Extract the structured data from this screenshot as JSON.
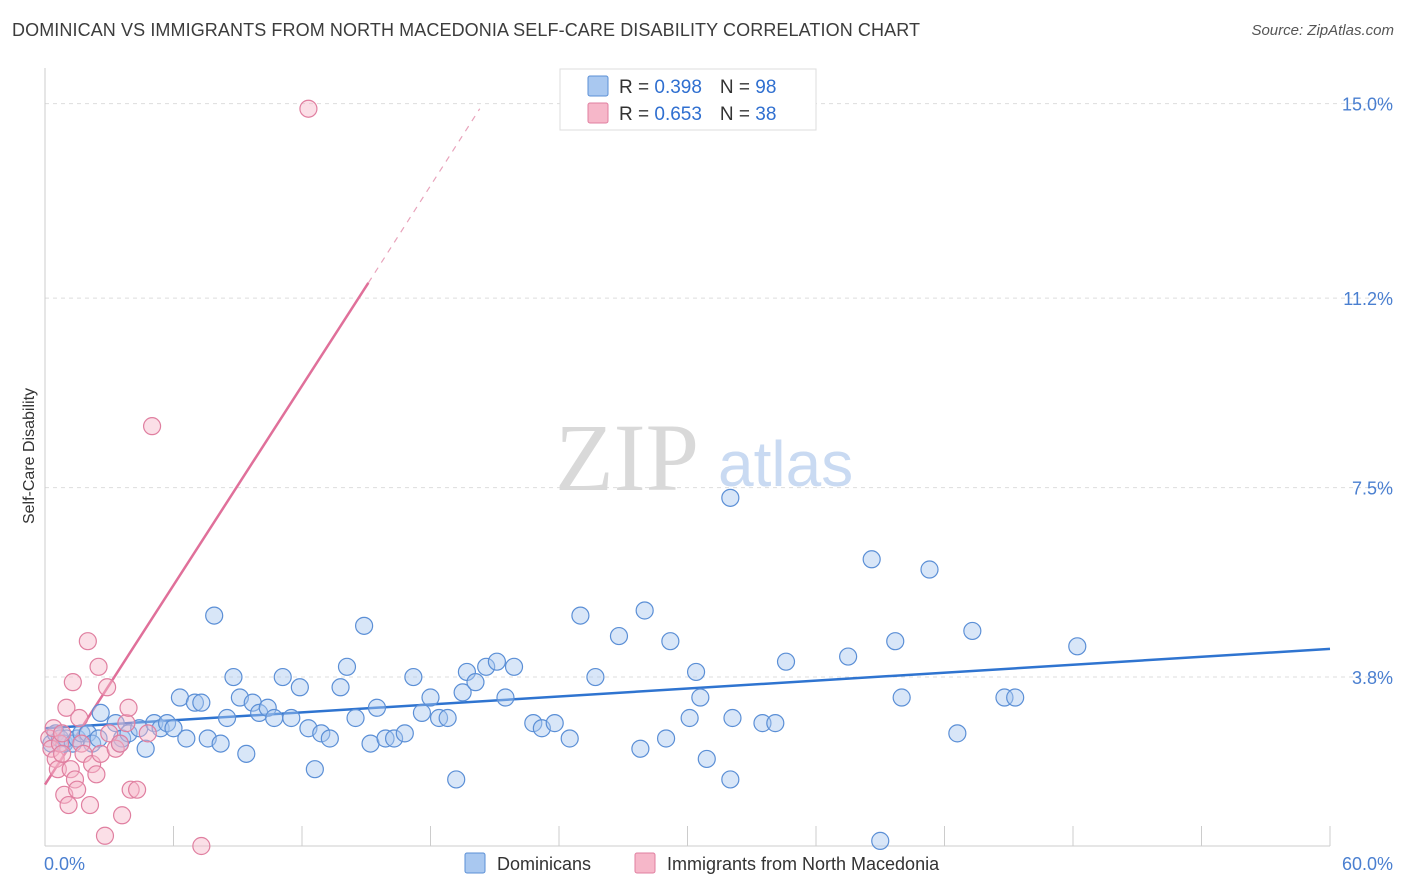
{
  "title": "DOMINICAN VS IMMIGRANTS FROM NORTH MACEDONIA SELF-CARE DISABILITY CORRELATION CHART",
  "source": "Source: ZipAtlas.com",
  "watermark": {
    "zip": "ZIP",
    "atlas": "atlas"
  },
  "colors": {
    "blue_fill": "#a9c8f0",
    "blue_stroke": "#5b8fd6",
    "blue_line": "#2f74d0",
    "pink_fill": "#f6b7c9",
    "pink_stroke": "#e07fa0",
    "pink_line": "#e0709a",
    "grid": "#dddddd",
    "tick_label": "#4a7fd0"
  },
  "legend": {
    "series": [
      {
        "r_label": "R = ",
        "r_value": "0.398",
        "n_label": "N = ",
        "n_value": "98"
      },
      {
        "r_label": "R = ",
        "r_value": "0.653",
        "n_label": "N = ",
        "n_value": "38"
      }
    ]
  },
  "chart_data": {
    "type": "scatter",
    "title": "DOMINICAN VS IMMIGRANTS FROM NORTH MACEDONIA SELF-CARE DISABILITY CORRELATION CHART",
    "xlabel": "",
    "ylabel": "Self-Care Disability",
    "xlim": [
      0,
      60
    ],
    "ylim": [
      0,
      15.5
    ],
    "x_tick_labels": [
      "0.0%",
      "60.0%"
    ],
    "y_ticks": [
      3.8,
      7.5,
      11.2,
      15.0
    ],
    "y_tick_labels": [
      "3.8%",
      "7.5%",
      "11.2%",
      "15.0%"
    ],
    "grid": true,
    "legend_position": "top-center",
    "series": [
      {
        "name": "Dominicans",
        "color": "blue",
        "trendline": {
          "x0": 0,
          "y0": 2.8,
          "x1": 60,
          "y1": 4.35
        },
        "points": [
          [
            0.3,
            2.5
          ],
          [
            0.5,
            2.7
          ],
          [
            0.7,
            2.6
          ],
          [
            0.9,
            2.5
          ],
          [
            1.0,
            2.6
          ],
          [
            1.3,
            2.5
          ],
          [
            1.5,
            2.6
          ],
          [
            1.7,
            2.7
          ],
          [
            2.0,
            2.7
          ],
          [
            2.2,
            2.5
          ],
          [
            2.5,
            2.6
          ],
          [
            2.6,
            3.1
          ],
          [
            3.3,
            2.9
          ],
          [
            3.5,
            2.5
          ],
          [
            3.6,
            2.6
          ],
          [
            3.9,
            2.7
          ],
          [
            4.4,
            2.8
          ],
          [
            4.7,
            2.4
          ],
          [
            5.1,
            2.9
          ],
          [
            5.4,
            2.8
          ],
          [
            5.7,
            2.9
          ],
          [
            6.0,
            2.8
          ],
          [
            6.3,
            3.4
          ],
          [
            6.6,
            2.6
          ],
          [
            7.0,
            3.3
          ],
          [
            7.3,
            3.3
          ],
          [
            7.6,
            2.6
          ],
          [
            7.9,
            5.0
          ],
          [
            8.2,
            2.5
          ],
          [
            8.5,
            3.0
          ],
          [
            8.8,
            3.8
          ],
          [
            9.1,
            3.4
          ],
          [
            9.4,
            2.3
          ],
          [
            9.7,
            3.3
          ],
          [
            10.0,
            3.1
          ],
          [
            10.4,
            3.2
          ],
          [
            10.7,
            3.0
          ],
          [
            11.1,
            3.8
          ],
          [
            11.5,
            3.0
          ],
          [
            11.9,
            3.6
          ],
          [
            12.3,
            2.8
          ],
          [
            12.6,
            2.0
          ],
          [
            12.9,
            2.7
          ],
          [
            13.3,
            2.6
          ],
          [
            13.8,
            3.6
          ],
          [
            14.1,
            4.0
          ],
          [
            14.5,
            3.0
          ],
          [
            14.9,
            4.8
          ],
          [
            15.2,
            2.5
          ],
          [
            15.5,
            3.2
          ],
          [
            15.9,
            2.6
          ],
          [
            16.3,
            2.6
          ],
          [
            16.8,
            2.7
          ],
          [
            17.2,
            3.8
          ],
          [
            17.6,
            3.1
          ],
          [
            18.0,
            3.4
          ],
          [
            18.4,
            3.0
          ],
          [
            18.8,
            3.0
          ],
          [
            19.2,
            1.8
          ],
          [
            19.5,
            3.5
          ],
          [
            19.7,
            3.9
          ],
          [
            20.1,
            3.7
          ],
          [
            20.6,
            4.0
          ],
          [
            21.1,
            4.1
          ],
          [
            21.5,
            3.4
          ],
          [
            21.9,
            4.0
          ],
          [
            22.8,
            2.9
          ],
          [
            23.2,
            2.8
          ],
          [
            23.8,
            2.9
          ],
          [
            24.5,
            2.6
          ],
          [
            25.0,
            5.0
          ],
          [
            25.7,
            3.8
          ],
          [
            26.8,
            4.6
          ],
          [
            27.8,
            2.4
          ],
          [
            28.0,
            5.1
          ],
          [
            29.0,
            2.6
          ],
          [
            29.2,
            4.5
          ],
          [
            30.1,
            3.0
          ],
          [
            30.4,
            3.9
          ],
          [
            30.6,
            3.4
          ],
          [
            30.9,
            2.2
          ],
          [
            32.0,
            7.3
          ],
          [
            32.1,
            3.0
          ],
          [
            32.0,
            1.8
          ],
          [
            33.5,
            2.9
          ],
          [
            34.1,
            2.9
          ],
          [
            34.6,
            4.1
          ],
          [
            37.5,
            4.2
          ],
          [
            38.6,
            6.1
          ],
          [
            39.0,
            0.6
          ],
          [
            39.7,
            4.5
          ],
          [
            40.0,
            3.4
          ],
          [
            41.3,
            5.9
          ],
          [
            42.6,
            2.7
          ],
          [
            43.3,
            4.7
          ],
          [
            44.8,
            3.4
          ],
          [
            45.3,
            3.4
          ],
          [
            48.2,
            4.4
          ]
        ]
      },
      {
        "name": "Immigrants from North Macedonia",
        "color": "pink",
        "trendline": {
          "x0": 0,
          "y0": 1.7,
          "x1": 15.1,
          "y1": 11.5,
          "dashed_to": {
            "x": 20.3,
            "y": 14.9
          }
        },
        "points": [
          [
            0.2,
            2.6
          ],
          [
            0.3,
            2.4
          ],
          [
            0.4,
            2.8
          ],
          [
            0.5,
            2.2
          ],
          [
            0.6,
            2.0
          ],
          [
            0.7,
            2.5
          ],
          [
            0.8,
            2.7
          ],
          [
            0.9,
            1.5
          ],
          [
            1.0,
            3.2
          ],
          [
            1.1,
            1.3
          ],
          [
            1.2,
            2.0
          ],
          [
            1.3,
            3.7
          ],
          [
            1.4,
            1.8
          ],
          [
            1.5,
            1.6
          ],
          [
            1.6,
            3.0
          ],
          [
            1.7,
            2.5
          ],
          [
            1.8,
            2.3
          ],
          [
            2.0,
            4.5
          ],
          [
            2.1,
            1.3
          ],
          [
            2.2,
            2.1
          ],
          [
            2.4,
            1.9
          ],
          [
            2.5,
            4.0
          ],
          [
            2.6,
            2.3
          ],
          [
            2.8,
            0.7
          ],
          [
            2.9,
            3.6
          ],
          [
            3.0,
            2.7
          ],
          [
            3.3,
            2.4
          ],
          [
            3.5,
            2.5
          ],
          [
            3.6,
            1.1
          ],
          [
            3.8,
            2.9
          ],
          [
            3.9,
            3.2
          ],
          [
            4.0,
            1.6
          ],
          [
            4.3,
            1.6
          ],
          [
            4.8,
            2.7
          ],
          [
            5.0,
            8.7
          ],
          [
            7.3,
            0.5
          ],
          [
            12.3,
            14.9
          ],
          [
            0.8,
            2.3
          ]
        ]
      }
    ]
  }
}
